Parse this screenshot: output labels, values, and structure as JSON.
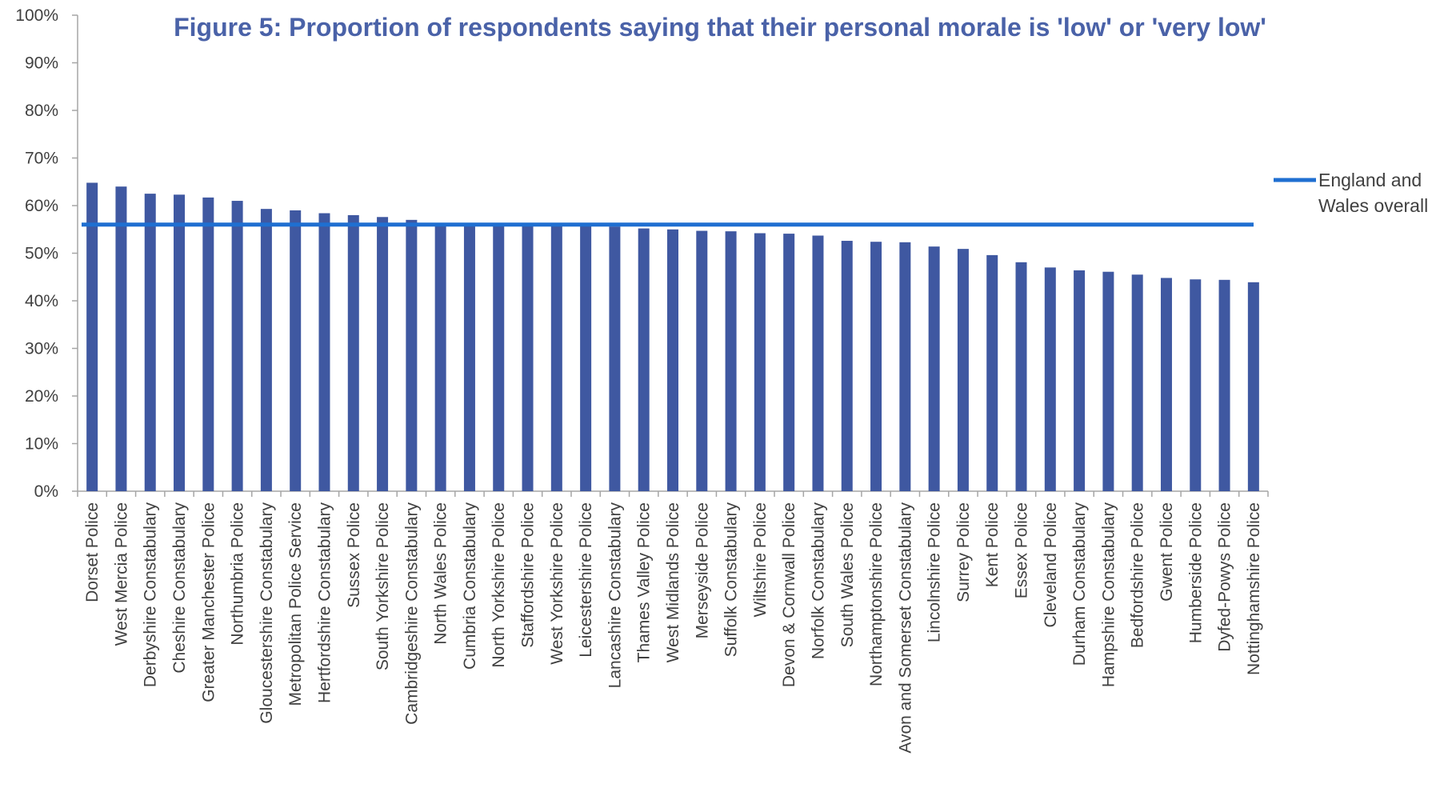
{
  "chart_data": {
    "type": "bar",
    "title": "Figure 5: Proportion of respondents saying that their personal morale is 'low' or 'very low'",
    "xlabel": "",
    "ylabel": "",
    "ylim": [
      0,
      100
    ],
    "yticks": [
      "0%",
      "10%",
      "20%",
      "30%",
      "40%",
      "50%",
      "60%",
      "70%",
      "80%",
      "90%",
      "100%"
    ],
    "categories": [
      "Dorset Police",
      "West Mercia Police",
      "Derbyshire Constabulary",
      "Cheshire Constabulary",
      "Greater Manchester Police",
      "Northumbria Police",
      "Gloucestershire Constabulary",
      "Metropolitan Police Service",
      "Hertfordshire Constabulary",
      "Sussex Police",
      "South Yorkshire Police",
      "Cambridgeshire Constabulary",
      "North Wales Police",
      "Cumbria Constabulary",
      "North Yorkshire Police",
      "Staffordshire Police",
      "West Yorkshire Police",
      "Leicestershire Police",
      "Lancashire Constabulary",
      "Thames Valley Police",
      "West Midlands Police",
      "Merseyside Police",
      "Suffolk Constabulary",
      "Wiltshire Police",
      "Devon & Cornwall Police",
      "Norfolk Constabulary",
      "South Wales Police",
      "Northamptonshire Police",
      "Avon and Somerset Constabulary",
      "Lincolnshire Police",
      "Surrey Police",
      "Kent Police",
      "Essex Police",
      "Cleveland Police",
      "Durham Constabulary",
      "Hampshire Constabulary",
      "Bedfordshire Police",
      "Gwent Police",
      "Humberside Police",
      "Dyfed-Powys Police",
      "Nottinghamshire Police"
    ],
    "series": [
      {
        "values": [
          64.8,
          64.0,
          62.5,
          62.3,
          61.7,
          61.0,
          59.3,
          59.0,
          58.4,
          58.0,
          57.6,
          57.0,
          56.3,
          56.1,
          56.0,
          55.9,
          55.8,
          55.7,
          55.6,
          55.2,
          55.0,
          54.7,
          54.6,
          54.2,
          54.1,
          53.7,
          52.6,
          52.4,
          52.3,
          51.4,
          50.9,
          49.6,
          48.1,
          47.0,
          46.4,
          46.1,
          45.5,
          44.8,
          44.5,
          44.4,
          43.9
        ]
      }
    ],
    "reference_line": {
      "name": "England and Wales overall",
      "value": 56.0
    },
    "legend": {
      "position": "right",
      "lines": [
        "England and",
        "Wales overall"
      ]
    },
    "colors": {
      "bar": "#3f58a1",
      "line": "#1f6fd1",
      "title": "#4a62a8",
      "axis": "#a6a6a6"
    },
    "grid": false
  }
}
